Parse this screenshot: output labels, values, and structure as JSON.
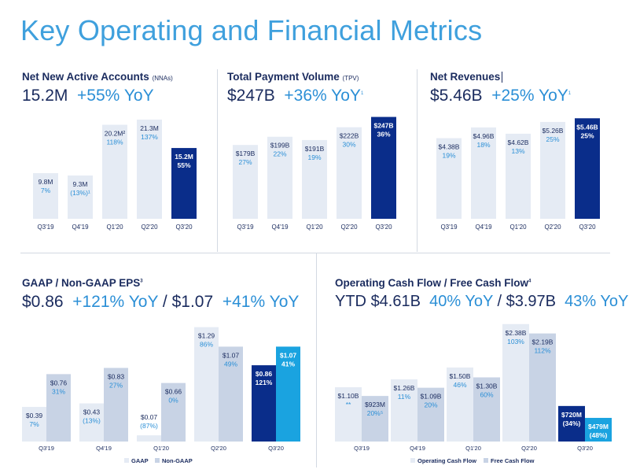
{
  "page_title": "Key Operating and Financial Metrics",
  "colors": {
    "title": "#3fa0dd",
    "navy": "#1a2b5e",
    "accent_blue": "#2b8fd6",
    "bar_light": "#e5ebf4",
    "bar_mid": "#c8d3e5",
    "bar_highlight": "#0a2d8a",
    "bar_highlight2": "#1aa3e0"
  },
  "nna": {
    "title": "Net New Active Accounts",
    "title_sub": "(NNAs)",
    "headline_value": "15.2M",
    "headline_growth": "+55%",
    "headline_suffix": "YoY"
  },
  "tpv": {
    "title": "Total Payment Volume",
    "title_sub": "(TPV)",
    "headline_value": "$247B",
    "headline_growth": "+36%",
    "headline_suffix": "YoY",
    "headline_note": "1"
  },
  "rev": {
    "title": "Net Revenues",
    "headline_value": "$5.46B",
    "headline_growth": "+25%",
    "headline_suffix": "YoY",
    "headline_note": "1"
  },
  "eps": {
    "title": "GAAP / Non-GAAP EPS",
    "title_note": "3",
    "headline_gaap": "$0.86",
    "headline_gaap_growth": "+121%",
    "headline_sep": "/",
    "headline_nongaap": "$1.07",
    "headline_nongaap_growth": "+41%",
    "headline_suffix": "YoY"
  },
  "cf": {
    "title": "Operating Cash Flow / Free Cash Flow",
    "title_note": "4",
    "headline_prefix": "YTD",
    "headline_ocf": "$4.61B",
    "headline_ocf_growth": "40%",
    "headline_sep": "/",
    "headline_fcf": "$3.97B",
    "headline_fcf_growth": "43%",
    "headline_suffix": "YoY"
  },
  "chart_data": [
    {
      "id": "nna",
      "type": "bar",
      "categories": [
        "Q3'19",
        "Q4'19",
        "Q1'20",
        "Q2'20",
        "Q3'20"
      ],
      "values": [
        9.8,
        9.3,
        20.2,
        21.3,
        15.2
      ],
      "value_labels": [
        "9.8M",
        "9.3M",
        "20.2M²",
        "21.3M",
        "15.2M"
      ],
      "growth_labels": [
        "7%",
        "(13%)¹",
        "118%",
        "137%",
        "55%"
      ],
      "ylim": [
        0,
        24
      ]
    },
    {
      "id": "tpv",
      "type": "bar",
      "categories": [
        "Q3'19",
        "Q4'19",
        "Q1'20",
        "Q2'20",
        "Q3'20"
      ],
      "values": [
        179,
        199,
        191,
        222,
        247
      ],
      "value_labels": [
        "$179B",
        "$199B",
        "$191B",
        "$222B",
        "$247B"
      ],
      "growth_labels": [
        "27%",
        "22%",
        "19%",
        "30%",
        "36%"
      ],
      "ylim": [
        0,
        250
      ]
    },
    {
      "id": "rev",
      "type": "bar",
      "categories": [
        "Q3'19",
        "Q4'19",
        "Q1'20",
        "Q2'20",
        "Q3'20"
      ],
      "values": [
        4.38,
        4.96,
        4.62,
        5.26,
        5.46
      ],
      "value_labels": [
        "$4.38B",
        "$4.96B",
        "$4.62B",
        "$5.26B",
        "$5.46B"
      ],
      "growth_labels": [
        "19%",
        "18%",
        "13%",
        "25%",
        "25%"
      ],
      "ylim": [
        0,
        5.6
      ]
    },
    {
      "id": "eps",
      "type": "bar",
      "categories": [
        "Q3'19",
        "Q4'19",
        "Q1'20",
        "Q2'20",
        "Q3'20"
      ],
      "series": [
        {
          "name": "GAAP",
          "values": [
            0.39,
            0.43,
            0.07,
            1.29,
            0.86
          ],
          "value_labels": [
            "$0.39",
            "$0.43",
            "$0.07",
            "$1.29",
            "$0.86"
          ],
          "growth_labels": [
            "7%",
            "(13%)",
            "(87%)",
            "86%",
            "121%"
          ]
        },
        {
          "name": "Non-GAAP",
          "values": [
            0.76,
            0.83,
            0.66,
            1.07,
            1.07
          ],
          "value_labels": [
            "$0.76",
            "$0.83",
            "$0.66",
            "$1.07",
            "$1.07"
          ],
          "growth_labels": [
            "31%",
            "27%",
            "0%",
            "49%",
            "41%"
          ]
        }
      ],
      "legend": "bottom",
      "ylim": [
        0,
        1.34
      ]
    },
    {
      "id": "cf",
      "type": "bar",
      "categories": [
        "Q3'19",
        "Q4'19",
        "Q1'20",
        "Q2'20",
        "Q3'20"
      ],
      "series": [
        {
          "name": "Operating Cash Flow",
          "values": [
            1.1,
            1.26,
            1.5,
            2.38,
            0.72
          ],
          "value_labels": [
            "$1.10B",
            "$1.26B",
            "$1.50B",
            "$2.38B",
            "$720M"
          ],
          "growth_labels": [
            "**",
            "11%",
            "46%",
            "103%",
            "(34%)"
          ]
        },
        {
          "name": "Free Cash Flow",
          "values": [
            0.923,
            1.09,
            1.3,
            2.19,
            0.479
          ],
          "value_labels": [
            "$923M",
            "$1.09B",
            "$1.30B",
            "$2.19B",
            "$479M"
          ],
          "growth_labels": [
            "20%⁵",
            "20%",
            "60%",
            "112%",
            "(48%)"
          ]
        }
      ],
      "legend": "bottom",
      "ylim": [
        0,
        2.44
      ]
    }
  ]
}
